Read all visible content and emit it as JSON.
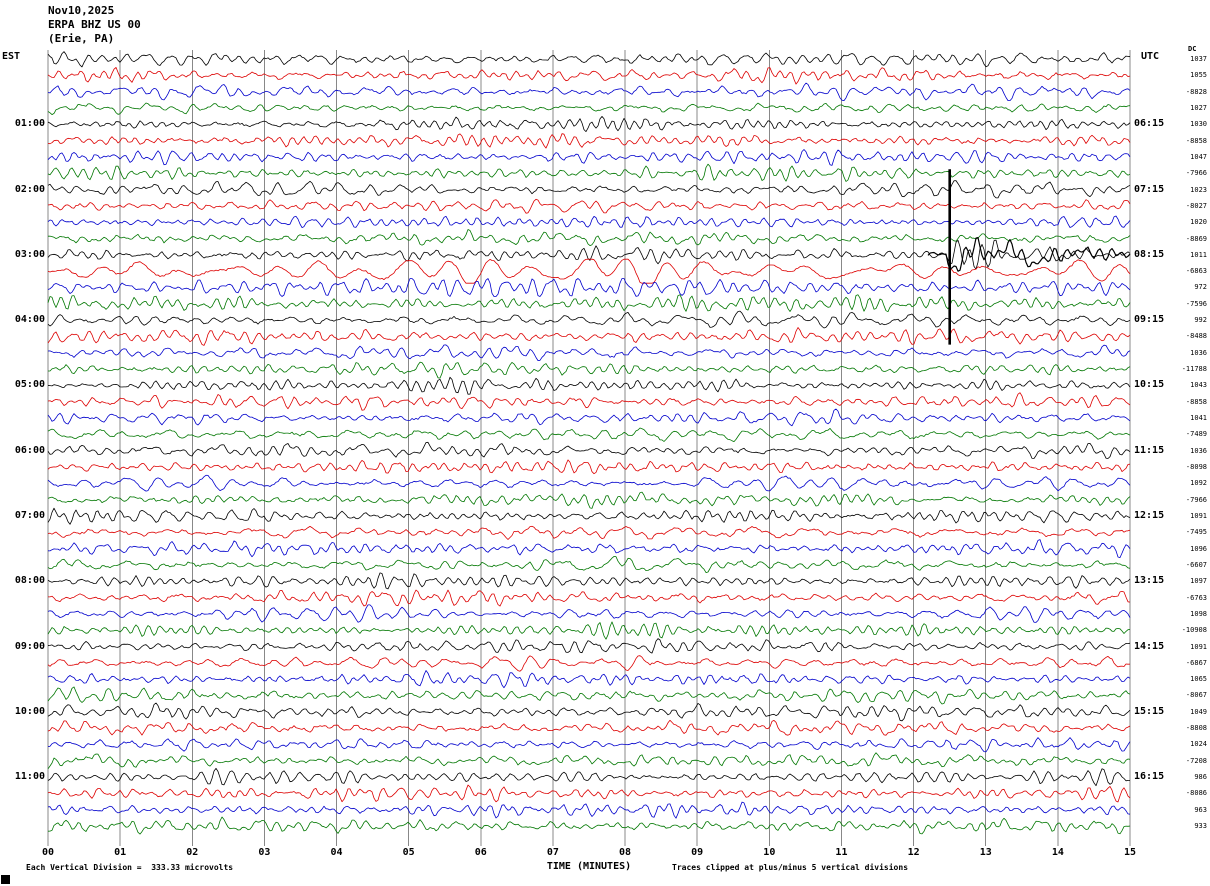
{
  "header": {
    "date": "Nov10,2025",
    "station": "ERPA BHZ US 00",
    "location": "(Erie, PA)"
  },
  "axes": {
    "left_label": "EST",
    "right_label": "UTC",
    "dc_label": "DC",
    "hour_labels_est": [
      "01:00",
      "02:00",
      "03:00",
      "04:00",
      "05:00",
      "06:00",
      "07:00",
      "08:00",
      "09:00",
      "10:00",
      "11:00"
    ],
    "hour_labels_utc": [
      "06:15",
      "07:15",
      "08:15",
      "09:15",
      "10:15",
      "11:15",
      "12:15",
      "13:15",
      "14:15",
      "15:15",
      "16:15"
    ],
    "x_ticks": [
      "00",
      "01",
      "02",
      "03",
      "04",
      "05",
      "06",
      "07",
      "08",
      "09",
      "10",
      "11",
      "12",
      "13",
      "14",
      "15"
    ],
    "x_axis_title": "TIME (MINUTES)"
  },
  "dc_values": [
    1037,
    1055,
    -8828,
    1027,
    1030,
    -8858,
    1047,
    -7966,
    1023,
    -8027,
    1020,
    -8869,
    1011,
    -6863,
    972,
    -7596,
    992,
    -8488,
    1036,
    -11788,
    1043,
    -8858,
    1041,
    -7489,
    1036,
    -8098,
    1092,
    -7966,
    1091,
    -7495,
    1096,
    -6607,
    1097,
    -6763,
    1098,
    -10908,
    1091,
    -6867,
    1065,
    -8067,
    1049,
    -8808,
    1024,
    -7208,
    986,
    -8086,
    963,
    933
  ],
  "footer": {
    "left": "Each Vertical Division =  333.33 microvolts",
    "right": "Traces clipped at plus/minus 5 vertical divisions"
  },
  "colors": {
    "trace_cycle_hex": [
      "#000000",
      "#dd0000",
      "#0000cc",
      "#007700"
    ],
    "grid": "#888888",
    "background": "#ffffff"
  },
  "chart_data": {
    "type": "line",
    "subtype": "seismogram_helicorder",
    "station": "ERPA BHZ US 00",
    "station_location": "Erie, PA",
    "date": "Nov10,2025",
    "timezone_left": "EST",
    "timezone_right": "UTC",
    "rows": 48,
    "minutes_per_row": 15,
    "row_start_est": "00:00",
    "row_color_cycle": [
      "black",
      "red",
      "blue",
      "green"
    ],
    "x_range_minutes": [
      0,
      15
    ],
    "x_axis_label": "TIME (MINUTES)",
    "vertical_division_microvolts": 333.33,
    "clip_divisions": 5,
    "dc_offset_column_values": [
      1037,
      1055,
      -8828,
      1027,
      1030,
      -8858,
      1047,
      -7966,
      1023,
      -8027,
      1020,
      -8869,
      1011,
      -6863,
      972,
      -7596,
      992,
      -8488,
      1036,
      -11788,
      1043,
      -8858,
      1041,
      -7489,
      1036,
      -8098,
      1092,
      -7966,
      1091,
      -7495,
      1096,
      -6607,
      1097,
      -6763,
      1098,
      -10908,
      1091,
      -6867,
      1065,
      -8067,
      1049,
      -8808,
      1024,
      -7208,
      986,
      -8086,
      963,
      933
    ],
    "event": {
      "description": "High-amplitude clipped seismic arrival: tall vertical black spike with dense burst, elevated amplitude continues on following traces",
      "row_est_label": "03:00",
      "minute_in_row": 12.5,
      "spike_spans_rows_est": "01:45 to 04:15",
      "elevated_amplitude_rows_est": [
        "03:15 (red, largest)",
        "03:30 (blue)",
        "03:45 (green)"
      ]
    },
    "background_signal": "continuous ambient microseismic noise visible on every 15-minute trace"
  }
}
